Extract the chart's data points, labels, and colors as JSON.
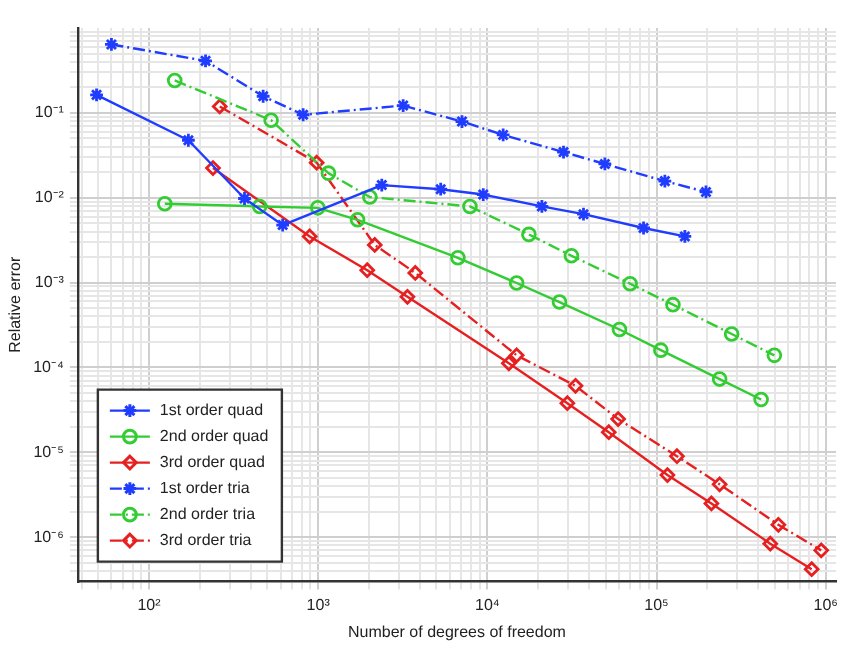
{
  "chart_data": {
    "type": "line",
    "xlabel": "Number of degrees of freedom",
    "ylabel": "Relative error",
    "log": "xy",
    "grid": true,
    "legend": "bottom left",
    "xlim": [
      38,
      1150000
    ],
    "xticks": [
      {
        "value": 40,
        "label": null
      },
      {
        "value": 50,
        "label": null
      },
      {
        "value": 60,
        "label": null
      },
      {
        "value": 70,
        "label": null
      },
      {
        "value": 80,
        "label": null
      },
      {
        "value": 90,
        "label": null
      },
      {
        "value": 100,
        "label": "10²"
      },
      {
        "value": 200,
        "label": null
      },
      {
        "value": 300,
        "label": null
      },
      {
        "value": 400,
        "label": null
      },
      {
        "value": 500,
        "label": null
      },
      {
        "value": 600,
        "label": null
      },
      {
        "value": 700,
        "label": null
      },
      {
        "value": 800,
        "label": null
      },
      {
        "value": 900,
        "label": null
      },
      {
        "value": 1000,
        "label": "10³"
      },
      {
        "value": 2000,
        "label": null
      },
      {
        "value": 3000,
        "label": null
      },
      {
        "value": 4000,
        "label": null
      },
      {
        "value": 5000,
        "label": null
      },
      {
        "value": 6000,
        "label": null
      },
      {
        "value": 7000,
        "label": null
      },
      {
        "value": 8000,
        "label": null
      },
      {
        "value": 9000,
        "label": null
      },
      {
        "value": 10000,
        "label": "10⁴"
      },
      {
        "value": 20000,
        "label": null
      },
      {
        "value": 30000,
        "label": null
      },
      {
        "value": 40000,
        "label": null
      },
      {
        "value": 50000,
        "label": null
      },
      {
        "value": 60000,
        "label": null
      },
      {
        "value": 70000,
        "label": null
      },
      {
        "value": 80000,
        "label": null
      },
      {
        "value": 90000,
        "label": null
      },
      {
        "value": 100000,
        "label": "10⁵"
      },
      {
        "value": 200000,
        "label": null
      },
      {
        "value": 300000,
        "label": null
      },
      {
        "value": 400000,
        "label": null
      },
      {
        "value": 500000,
        "label": null
      },
      {
        "value": 600000,
        "label": null
      },
      {
        "value": 700000,
        "label": null
      },
      {
        "value": 800000,
        "label": null
      },
      {
        "value": 900000,
        "label": null
      },
      {
        "value": 1000000,
        "label": "10⁶"
      }
    ],
    "ylim": [
      3e-07,
      1
    ],
    "yticks": [
      {
        "value": 4e-07,
        "label": null
      },
      {
        "value": 5e-07,
        "label": null
      },
      {
        "value": 6e-07,
        "label": null
      },
      {
        "value": 7e-07,
        "label": null
      },
      {
        "value": 8e-07,
        "label": null
      },
      {
        "value": 9e-07,
        "label": null
      },
      {
        "value": 1e-06,
        "label": "10⁻⁶"
      },
      {
        "value": 2e-06,
        "label": null
      },
      {
        "value": 3e-06,
        "label": null
      },
      {
        "value": 4e-06,
        "label": null
      },
      {
        "value": 5e-06,
        "label": null
      },
      {
        "value": 6e-06,
        "label": null
      },
      {
        "value": 7e-06,
        "label": null
      },
      {
        "value": 8e-06,
        "label": null
      },
      {
        "value": 9e-06,
        "label": null
      },
      {
        "value": 1e-05,
        "label": "10⁻⁵"
      },
      {
        "value": 2e-05,
        "label": null
      },
      {
        "value": 3e-05,
        "label": null
      },
      {
        "value": 4e-05,
        "label": null
      },
      {
        "value": 5e-05,
        "label": null
      },
      {
        "value": 6e-05,
        "label": null
      },
      {
        "value": 7e-05,
        "label": null
      },
      {
        "value": 8e-05,
        "label": null
      },
      {
        "value": 9e-05,
        "label": null
      },
      {
        "value": 0.0001,
        "label": "10⁻⁴"
      },
      {
        "value": 0.0002,
        "label": null
      },
      {
        "value": 0.0003,
        "label": null
      },
      {
        "value": 0.0004,
        "label": null
      },
      {
        "value": 0.0005,
        "label": null
      },
      {
        "value": 0.0006,
        "label": null
      },
      {
        "value": 0.0007,
        "label": null
      },
      {
        "value": 0.0008,
        "label": null
      },
      {
        "value": 0.0009,
        "label": null
      },
      {
        "value": 0.001,
        "label": "10⁻³"
      },
      {
        "value": 0.002,
        "label": null
      },
      {
        "value": 0.003,
        "label": null
      },
      {
        "value": 0.004,
        "label": null
      },
      {
        "value": 0.005,
        "label": null
      },
      {
        "value": 0.006,
        "label": null
      },
      {
        "value": 0.007,
        "label": null
      },
      {
        "value": 0.008,
        "label": null
      },
      {
        "value": 0.009,
        "label": null
      },
      {
        "value": 0.01,
        "label": "10⁻²"
      },
      {
        "value": 0.02,
        "label": null
      },
      {
        "value": 0.03,
        "label": null
      },
      {
        "value": 0.04,
        "label": null
      },
      {
        "value": 0.05,
        "label": null
      },
      {
        "value": 0.06,
        "label": null
      },
      {
        "value": 0.07,
        "label": null
      },
      {
        "value": 0.08,
        "label": null
      },
      {
        "value": 0.09,
        "label": null
      },
      {
        "value": 0.1,
        "label": "10⁻¹"
      },
      {
        "value": 0.2,
        "label": null
      },
      {
        "value": 0.3,
        "label": null
      },
      {
        "value": 0.4,
        "label": null
      },
      {
        "value": 0.5,
        "label": null
      },
      {
        "value": 0.6,
        "label": null
      },
      {
        "value": 0.7,
        "label": null
      },
      {
        "value": 0.8,
        "label": null
      },
      {
        "value": 0.9,
        "label": null
      }
    ],
    "series": [
      {
        "name": "1st order quad",
        "color": "#1f3cff",
        "marker": "cross",
        "line_style": "solid",
        "x": [
          49,
          171,
          367,
          617,
          2377,
          5300,
          9460,
          21000,
          37000,
          83800,
          147000
        ],
        "values": [
          0.163,
          0.0476,
          0.0098,
          0.00477,
          0.0141,
          0.0126,
          0.0109,
          0.0079,
          0.0064,
          0.0044,
          0.0035
        ]
      },
      {
        "name": "2nd order quad",
        "color": "#33cc33",
        "marker": "circle",
        "line_style": "solid",
        "x": [
          124,
          451,
          995,
          1710,
          6700,
          14900,
          26700,
          60400,
          106000,
          236000,
          415000
        ],
        "values": [
          0.0085,
          0.0079,
          0.0076,
          0.0055,
          0.00196,
          0.00099,
          0.00059,
          0.00028,
          0.00016,
          7.3e-05,
          4.2e-05
        ]
      },
      {
        "name": "3rd order quad",
        "color": "#e62020",
        "marker": "diamond",
        "line_style": "solid",
        "x": [
          239,
          891,
          1950,
          3370,
          13400,
          29700,
          52200,
          116000,
          211000,
          470000,
          826000
        ],
        "values": [
          0.0224,
          0.0035,
          0.0014,
          0.00068,
          0.000112,
          3.8e-05,
          1.73e-05,
          5.4e-06,
          2.5e-06,
          8.4e-07,
          4.2e-07
        ]
      },
      {
        "name": "1st order tria",
        "color": "#1f3cff",
        "marker": "cross",
        "line_style": "dashed",
        "x": [
          60,
          216,
          473,
          815,
          3180,
          7080,
          12400,
          28200,
          49500,
          112000,
          196000
        ],
        "values": [
          0.64,
          0.41,
          0.157,
          0.095,
          0.122,
          0.079,
          0.055,
          0.0345,
          0.025,
          0.0157,
          0.0117
        ]
      },
      {
        "name": "2nd order tria",
        "color": "#33cc33",
        "marker": "circle",
        "line_style": "dashed",
        "x": [
          142,
          527,
          1150,
          2020,
          7890,
          17600,
          31400,
          69800,
          125000,
          278000,
          497000
        ],
        "values": [
          0.241,
          0.082,
          0.0195,
          0.0102,
          0.0079,
          0.0037,
          0.00207,
          0.00097,
          0.00055,
          0.000248,
          0.000139
        ]
      },
      {
        "name": "3rd order tria",
        "color": "#e62020",
        "marker": "diamond",
        "line_style": "dashed",
        "x": [
          262,
          980,
          2160,
          3750,
          14900,
          33200,
          59300,
          132000,
          236000,
          525000,
          940000
        ],
        "values": [
          0.119,
          0.0259,
          0.00278,
          0.0013,
          0.000139,
          6.08e-05,
          2.47e-05,
          9e-06,
          4.2e-06,
          1.4e-06,
          7e-07
        ]
      }
    ]
  }
}
